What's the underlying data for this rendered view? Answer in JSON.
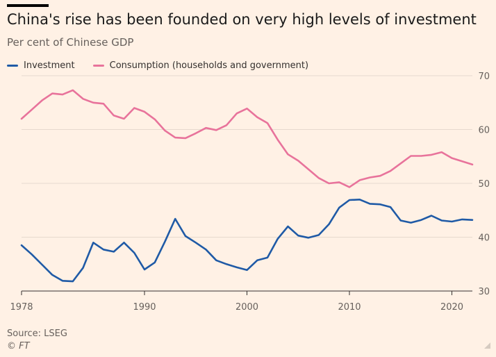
{
  "header": {
    "title": "China's rise has been founded on very high levels of investment",
    "subtitle": "Per cent of Chinese GDP"
  },
  "footer": {
    "source": "Source: LSEG",
    "copyright": "© FT"
  },
  "colors": {
    "background": "#fff1e5",
    "investment": "#1f5aa6",
    "consumption": "#e8739b",
    "gridline": "#e6d9ce",
    "axis": "#33302e"
  },
  "chart_data": {
    "type": "line",
    "x_ticks": [
      "1978",
      "1990",
      "2000",
      "2010",
      "2020"
    ],
    "x_tick_values": [
      1978,
      1990,
      2000,
      2010,
      2020
    ],
    "y_ticks": [
      "70",
      "60",
      "50",
      "40",
      "30"
    ],
    "y_tick_values": [
      70,
      60,
      50,
      40,
      30
    ],
    "xlim": [
      1978,
      2022
    ],
    "ylim": [
      30,
      70
    ],
    "y_axis_side": "right",
    "grid": "horizontal",
    "legend_position": "top-left",
    "x": [
      1978,
      1979,
      1980,
      1981,
      1982,
      1983,
      1984,
      1985,
      1986,
      1987,
      1988,
      1989,
      1990,
      1991,
      1992,
      1993,
      1994,
      1995,
      1996,
      1997,
      1998,
      1999,
      2000,
      2001,
      2002,
      2003,
      2004,
      2005,
      2006,
      2007,
      2008,
      2009,
      2010,
      2011,
      2012,
      2013,
      2014,
      2015,
      2016,
      2017,
      2018,
      2019,
      2020,
      2021,
      2022
    ],
    "series": [
      {
        "name": "Investment",
        "color": "#1f5aa6",
        "values": [
          38.5,
          36.8,
          34.9,
          33.0,
          31.9,
          31.8,
          34.3,
          39.0,
          37.7,
          37.3,
          39.0,
          37.1,
          34.0,
          35.3,
          39.2,
          43.4,
          40.2,
          39.0,
          37.7,
          35.7,
          35.0,
          34.4,
          33.9,
          35.7,
          36.2,
          39.7,
          42.0,
          40.3,
          39.9,
          40.4,
          42.4,
          45.5,
          46.9,
          47.0,
          46.2,
          46.1,
          45.6,
          43.1,
          42.7,
          43.2,
          44.0,
          43.1,
          42.9,
          43.3,
          43.2
        ]
      },
      {
        "name": "Consumption (households and government)",
        "color": "#e8739b",
        "values": [
          62.0,
          63.7,
          65.4,
          66.7,
          66.5,
          67.3,
          65.7,
          65.0,
          64.8,
          62.6,
          62.0,
          64.0,
          63.3,
          61.9,
          59.8,
          58.5,
          58.4,
          59.3,
          60.3,
          59.9,
          60.8,
          63.0,
          63.9,
          62.3,
          61.2,
          58.1,
          55.4,
          54.2,
          52.6,
          51.0,
          50.0,
          50.2,
          49.3,
          50.6,
          51.1,
          51.4,
          52.3,
          53.7,
          55.1,
          55.1,
          55.3,
          55.8,
          54.7,
          54.1,
          53.5
        ]
      }
    ]
  }
}
